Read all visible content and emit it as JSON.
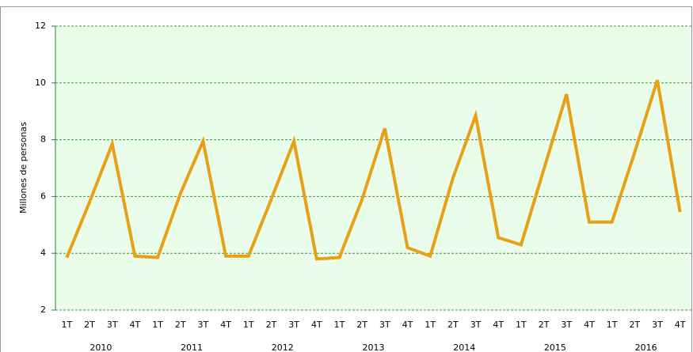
{
  "chart_data": {
    "type": "line",
    "y_label": "Millones de personas",
    "categories": [
      "1T",
      "2T",
      "3T",
      "4T",
      "1T",
      "2T",
      "3T",
      "4T",
      "1T",
      "2T",
      "3T",
      "4T",
      "1T",
      "2T",
      "3T",
      "4T",
      "1T",
      "2T",
      "3T",
      "4T",
      "1T",
      "2T",
      "3T",
      "4T",
      "1T",
      "2T",
      "3T",
      "4T"
    ],
    "years": [
      "2010",
      "2011",
      "2012",
      "2013",
      "2014",
      "2015",
      "2016"
    ],
    "series": [
      {
        "color": "#e6a118",
        "values": [
          3.85,
          5.8,
          7.85,
          3.9,
          3.85,
          6.1,
          7.95,
          3.9,
          3.9,
          5.9,
          7.95,
          3.8,
          3.85,
          5.9,
          8.4,
          4.2,
          3.9,
          6.65,
          8.85,
          4.55,
          4.3,
          6.95,
          9.6,
          5.1,
          5.1,
          7.55,
          10.1,
          5.45
        ]
      }
    ],
    "ylim": [
      2,
      12
    ],
    "yticks": [
      2,
      4,
      6,
      8,
      10,
      12
    ],
    "grid": true
  }
}
